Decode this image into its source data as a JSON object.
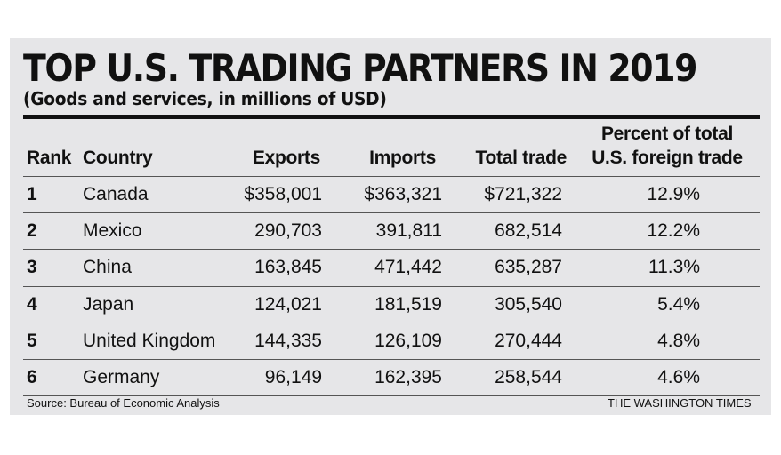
{
  "title": "TOP U.S. TRADING PARTNERS IN 2019",
  "subtitle": "(Goods and services, in millions of USD)",
  "source": "Source: Bureau of Economic Analysis",
  "credit": "THE WASHINGTON TIMES",
  "headers": {
    "rank": "Rank",
    "country": "Country",
    "exports": "Exports",
    "imports": "Imports",
    "total": "Total trade",
    "percent_line1": "Percent of total",
    "percent_line2": "U.S. foreign trade"
  },
  "chart_data": {
    "type": "table",
    "title": "TOP U.S. TRADING PARTNERS IN 2019",
    "subtitle": "(Goods and services, in millions of USD)",
    "columns": [
      "Rank",
      "Country",
      "Exports",
      "Imports",
      "Total trade",
      "Percent of total U.S. foreign trade"
    ],
    "rows": [
      {
        "rank": "1",
        "country": "Canada",
        "exports": "$358,001",
        "imports": "$363,321",
        "total": "$721,322",
        "percent": "12.9%"
      },
      {
        "rank": "2",
        "country": "Mexico",
        "exports": "290,703",
        "imports": "391,811",
        "total": "682,514",
        "percent": "12.2%"
      },
      {
        "rank": "3",
        "country": "China",
        "exports": "163,845",
        "imports": "471,442",
        "total": "635,287",
        "percent": "11.3%"
      },
      {
        "rank": "4",
        "country": "Japan",
        "exports": "124,021",
        "imports": "181,519",
        "total": "305,540",
        "percent": "5.4%"
      },
      {
        "rank": "5",
        "country": "United Kingdom",
        "exports": "144,335",
        "imports": "126,109",
        "total": "270,444",
        "percent": "4.8%"
      },
      {
        "rank": "6",
        "country": "Germany",
        "exports": "96,149",
        "imports": "162,395",
        "total": "258,544",
        "percent": "4.6%"
      }
    ]
  }
}
